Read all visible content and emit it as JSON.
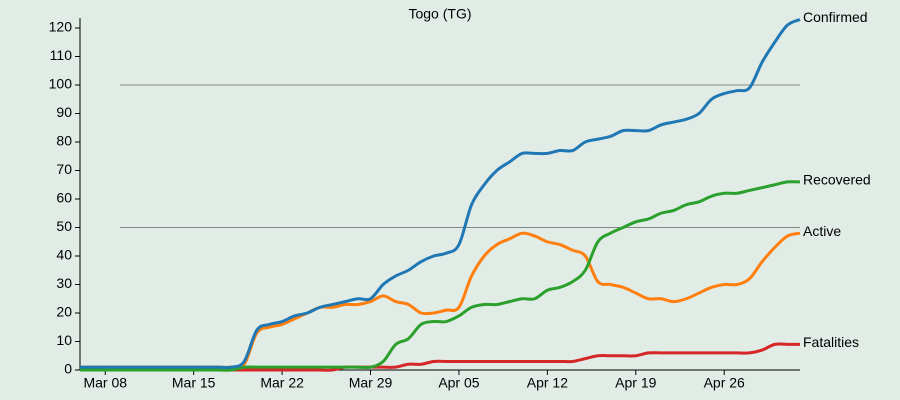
{
  "chart_data": {
    "type": "line",
    "title": "Togo (TG)",
    "categories": [
      null,
      null,
      "Mar 08",
      null,
      null,
      null,
      null,
      null,
      null,
      "Mar 15",
      null,
      null,
      null,
      null,
      null,
      null,
      "Mar 22",
      null,
      null,
      null,
      null,
      null,
      null,
      "Mar 29",
      null,
      null,
      null,
      null,
      null,
      null,
      "Apr 05",
      null,
      null,
      null,
      null,
      null,
      null,
      "Apr 12",
      null,
      null,
      null,
      null,
      null,
      null,
      "Apr 19",
      null,
      null,
      null,
      null,
      null,
      null,
      "Apr 26",
      null,
      null,
      null,
      null,
      null,
      null
    ],
    "series": [
      {
        "name": "Confirmed",
        "color": "#1f77b4",
        "values": [
          1,
          1,
          1,
          1,
          1,
          1,
          1,
          1,
          1,
          1,
          1,
          1,
          1,
          3,
          14,
          16,
          17,
          19,
          20,
          22,
          23,
          24,
          25,
          25,
          30,
          33,
          35,
          38,
          40,
          41,
          44,
          58,
          65,
          70,
          73,
          76,
          76,
          76,
          77,
          77,
          80,
          81,
          82,
          84,
          84,
          84,
          86,
          87,
          88,
          90,
          95,
          97,
          98,
          99,
          108,
          115,
          121,
          123
        ]
      },
      {
        "name": "Recovered",
        "color": "#2ca02c",
        "values": [
          0,
          0,
          0,
          0,
          0,
          0,
          0,
          0,
          0,
          0,
          0,
          0,
          0,
          1,
          1,
          1,
          1,
          1,
          1,
          1,
          1,
          1,
          1,
          1,
          3,
          9,
          11,
          16,
          17,
          17,
          19,
          22,
          23,
          23,
          24,
          25,
          25,
          28,
          29,
          31,
          35,
          45,
          48,
          50,
          52,
          53,
          55,
          56,
          58,
          59,
          61,
          62,
          62,
          63,
          64,
          65,
          66,
          66
        ]
      },
      {
        "name": "Active",
        "color": "#ff7f0e",
        "values": [
          1,
          1,
          1,
          1,
          1,
          1,
          1,
          1,
          1,
          1,
          1,
          1,
          1,
          2,
          13,
          15,
          16,
          18,
          20,
          22,
          22,
          23,
          23,
          24,
          26,
          24,
          23,
          20,
          20,
          21,
          22,
          33,
          40,
          44,
          46,
          48,
          47,
          45,
          44,
          42,
          40,
          31,
          30,
          29,
          27,
          25,
          25,
          24,
          25,
          27,
          29,
          30,
          30,
          32,
          38,
          43,
          47,
          48
        ]
      },
      {
        "name": "Fatalities",
        "color": "#d62728",
        "values": [
          0,
          0,
          0,
          0,
          0,
          0,
          0,
          0,
          0,
          0,
          0,
          0,
          0,
          0,
          0,
          0,
          0,
          0,
          0,
          0,
          0,
          1,
          1,
          1,
          1,
          1,
          2,
          2,
          3,
          3,
          3,
          3,
          3,
          3,
          3,
          3,
          3,
          3,
          3,
          3,
          4,
          5,
          5,
          5,
          5,
          6,
          6,
          6,
          6,
          6,
          6,
          6,
          6,
          6,
          7,
          9,
          9,
          9
        ]
      }
    ],
    "ylim": [
      0,
      120
    ],
    "yticks": [
      0,
      10,
      20,
      30,
      40,
      50,
      60,
      70,
      80,
      90,
      100,
      110,
      120
    ],
    "gridlines": [
      50,
      100
    ]
  }
}
